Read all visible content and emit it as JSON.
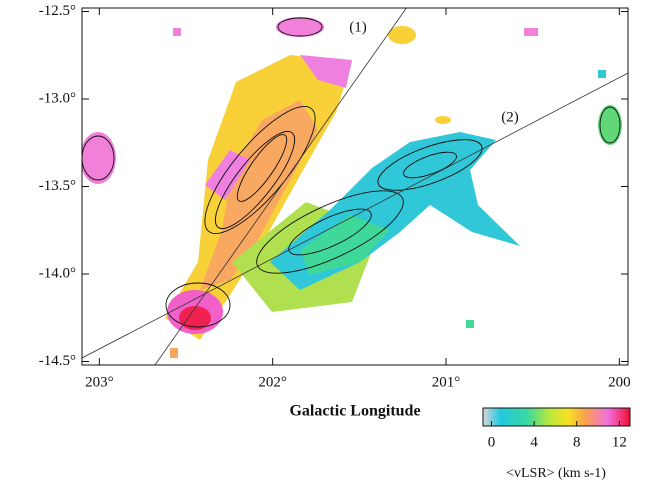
{
  "chart_data": {
    "type": "map",
    "xlabel": "Galactic Longitude",
    "xlim": [
      203.1,
      199.95
    ],
    "xticks": [
      {
        "value": 203,
        "label": "203°"
      },
      {
        "value": 202,
        "label": "202°"
      },
      {
        "value": 201,
        "label": "201°"
      },
      {
        "value": 200,
        "label": "200"
      }
    ],
    "ylim": [
      -12.48,
      -14.52
    ],
    "yticks": [
      {
        "value": -12.5,
        "label": "-12.5°"
      },
      {
        "value": -13.0,
        "label": "-13.0°"
      },
      {
        "value": -13.5,
        "label": "-13.5°"
      },
      {
        "value": -14.0,
        "label": "-14.0°"
      },
      {
        "value": -14.5,
        "label": "-14.5°"
      }
    ],
    "annotations": [
      "(1)",
      "(2)"
    ],
    "colorbar": {
      "label": "<vLSR> (km s-1)",
      "lim": [
        -0.8,
        13
      ],
      "ticks": [
        0,
        4,
        8,
        12
      ]
    }
  }
}
